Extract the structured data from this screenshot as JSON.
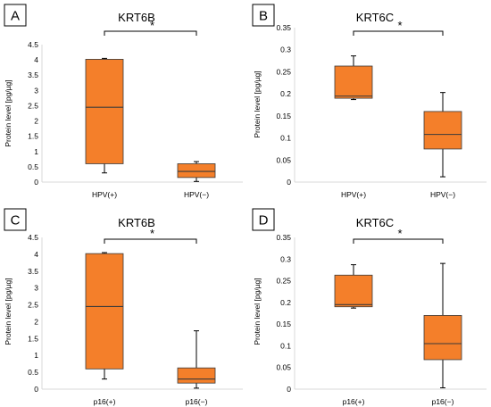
{
  "chart_data": [
    {
      "panel_label": "A",
      "type": "box",
      "title": "KRT6B",
      "ylabel": "Protein level [pg/µg]",
      "ylim": [
        0,
        4.5
      ],
      "yticks": [
        "0",
        "0.5",
        "1",
        "1.5",
        "2",
        "2.5",
        "3",
        "3.5",
        "4",
        "4.5"
      ],
      "categories": [
        "HPV(+)",
        "HPV(−)"
      ],
      "boxes": [
        {
          "category": "HPV(+)",
          "min": 0.3,
          "q1": 0.6,
          "median": 2.45,
          "q3": 4.02,
          "max": 4.05
        },
        {
          "category": "HPV(−)",
          "min": 0.02,
          "q1": 0.15,
          "median": 0.35,
          "q3": 0.6,
          "max": 0.67
        }
      ],
      "significance": "*",
      "grid": false,
      "box_color": "#F47F2A"
    },
    {
      "panel_label": "B",
      "type": "box",
      "title": "KRT6C",
      "ylabel": "Protein level [pg/µg]",
      "ylim": [
        0,
        0.35
      ],
      "yticks": [
        "0",
        "0.05",
        "0.1",
        "0.15",
        "0.2",
        "0.25",
        "0.3",
        "0.35"
      ],
      "categories": [
        "HPV(+)",
        "HPV(−)"
      ],
      "boxes": [
        {
          "category": "HPV(+)",
          "min": 0.187,
          "q1": 0.19,
          "median": 0.195,
          "q3": 0.263,
          "max": 0.286
        },
        {
          "category": "HPV(−)",
          "min": 0.012,
          "q1": 0.075,
          "median": 0.108,
          "q3": 0.16,
          "max": 0.203
        }
      ],
      "significance": "*",
      "grid": false,
      "box_color": "#F47F2A"
    },
    {
      "panel_label": "C",
      "type": "box",
      "title": "KRT6B",
      "ylabel": "Protein level [pg/µg]",
      "ylim": [
        0,
        4.5
      ],
      "yticks": [
        "0",
        "0.5",
        "1",
        "1.5",
        "2",
        "2.5",
        "3",
        "3.5",
        "4",
        "4.5"
      ],
      "categories": [
        "p16(+)",
        "p16(−)"
      ],
      "boxes": [
        {
          "category": "p16(+)",
          "min": 0.3,
          "q1": 0.6,
          "median": 2.45,
          "q3": 4.02,
          "max": 4.05
        },
        {
          "category": "p16(−)",
          "min": 0.03,
          "q1": 0.18,
          "median": 0.3,
          "q3": 0.63,
          "max": 1.73
        }
      ],
      "significance": "*",
      "grid": false,
      "box_color": "#F47F2A"
    },
    {
      "panel_label": "D",
      "type": "box",
      "title": "KRT6C",
      "ylabel": "Protein level [pg/µg]",
      "ylim": [
        0,
        0.35
      ],
      "yticks": [
        "0",
        "0.05",
        "0.1",
        "0.15",
        "0.2",
        "0.25",
        "0.3",
        "0.35"
      ],
      "categories": [
        "p16(+)",
        "p16(−)"
      ],
      "boxes": [
        {
          "category": "p16(+)",
          "min": 0.187,
          "q1": 0.19,
          "median": 0.195,
          "q3": 0.263,
          "max": 0.287
        },
        {
          "category": "p16(−)",
          "min": 0.003,
          "q1": 0.068,
          "median": 0.105,
          "q3": 0.17,
          "max": 0.29
        }
      ],
      "significance": "*",
      "grid": false,
      "box_color": "#F47F2A"
    }
  ]
}
